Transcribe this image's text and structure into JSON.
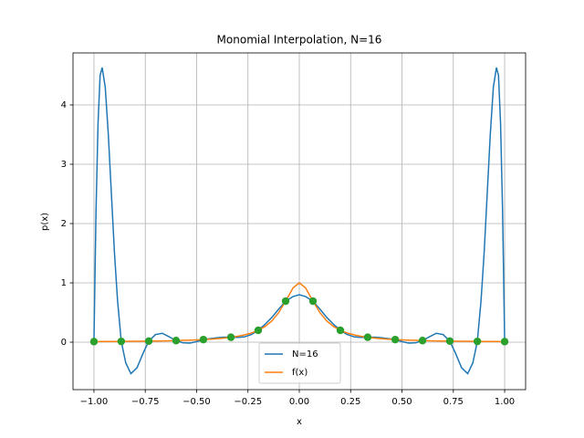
{
  "chart_data": {
    "type": "line",
    "title": "Monomial Interpolation, N=16",
    "xlabel": "x",
    "ylabel": "p(x)",
    "x": [
      -1.0,
      -0.99,
      -0.98,
      -0.97,
      -0.96,
      -0.945,
      -0.93,
      -0.915,
      -0.9,
      -0.885,
      -0.867,
      -0.845,
      -0.82,
      -0.79,
      -0.76,
      -0.733,
      -0.7,
      -0.667,
      -0.633,
      -0.6,
      -0.567,
      -0.533,
      -0.5,
      -0.467,
      -0.433,
      -0.4,
      -0.367,
      -0.333,
      -0.3,
      -0.267,
      -0.233,
      -0.2,
      -0.167,
      -0.133,
      -0.1,
      -0.0667,
      -0.03,
      0,
      0.03,
      0.0667,
      0.1,
      0.133,
      0.167,
      0.2,
      0.233,
      0.267,
      0.3,
      0.333,
      0.367,
      0.4,
      0.433,
      0.467,
      0.5,
      0.533,
      0.567,
      0.6,
      0.633,
      0.667,
      0.7,
      0.733,
      0.76,
      0.79,
      0.82,
      0.845,
      0.867,
      0.885,
      0.9,
      0.915,
      0.93,
      0.945,
      0.96,
      0.97,
      0.98,
      0.99,
      1.0
    ],
    "series": [
      {
        "name": "N=16",
        "color": "#1f77b4",
        "values": [
          0.01,
          2.2,
          3.7,
          4.5,
          4.63,
          4.3,
          3.5,
          2.5,
          1.5,
          0.7,
          0.013,
          -0.35,
          -0.53,
          -0.43,
          -0.18,
          0.018,
          0.13,
          0.15,
          0.09,
          0.024,
          -0.01,
          -0.015,
          0.01,
          0.044,
          0.06,
          0.075,
          0.085,
          0.083,
          0.08,
          0.09,
          0.13,
          0.2,
          0.3,
          0.42,
          0.56,
          0.692,
          0.77,
          0.8,
          0.77,
          0.692,
          0.56,
          0.42,
          0.3,
          0.2,
          0.13,
          0.09,
          0.08,
          0.083,
          0.085,
          0.075,
          0.06,
          0.044,
          0.01,
          -0.015,
          -0.01,
          0.024,
          0.09,
          0.15,
          0.13,
          0.018,
          -0.18,
          -0.43,
          -0.53,
          -0.35,
          0.013,
          0.7,
          1.5,
          2.5,
          3.5,
          4.3,
          4.63,
          4.5,
          3.7,
          2.2,
          0.01
        ]
      },
      {
        "name": "f(x)",
        "color": "#ff7f0e",
        "values": [
          0.01,
          0.01,
          0.01,
          0.011,
          0.011,
          0.011,
          0.011,
          0.012,
          0.012,
          0.013,
          0.013,
          0.014,
          0.015,
          0.016,
          0.017,
          0.018,
          0.02,
          0.022,
          0.024,
          0.027,
          0.03,
          0.034,
          0.038,
          0.044,
          0.051,
          0.059,
          0.069,
          0.083,
          0.1,
          0.123,
          0.155,
          0.2,
          0.264,
          0.36,
          0.5,
          0.692,
          0.917,
          1.0,
          0.917,
          0.692,
          0.5,
          0.36,
          0.264,
          0.2,
          0.155,
          0.123,
          0.1,
          0.083,
          0.069,
          0.059,
          0.051,
          0.044,
          0.038,
          0.034,
          0.03,
          0.027,
          0.024,
          0.022,
          0.02,
          0.018,
          0.017,
          0.016,
          0.015,
          0.014,
          0.013,
          0.013,
          0.012,
          0.012,
          0.011,
          0.011,
          0.011,
          0.011,
          0.01,
          0.01,
          0.01
        ]
      }
    ],
    "points": {
      "color": "#2ca02c",
      "x": [
        -1.0,
        -0.867,
        -0.733,
        -0.6,
        -0.467,
        -0.333,
        -0.2,
        -0.0667,
        0.0667,
        0.2,
        0.333,
        0.467,
        0.6,
        0.733,
        0.867,
        1.0
      ],
      "values": [
        0.01,
        0.013,
        0.018,
        0.027,
        0.044,
        0.083,
        0.2,
        0.692,
        0.692,
        0.2,
        0.083,
        0.044,
        0.027,
        0.018,
        0.013,
        0.01
      ]
    },
    "xlim": [
      -1.102,
      1.102
    ],
    "ylim": [
      -0.8,
      4.877
    ],
    "xticks": [
      {
        "value": -1,
        "label": "−1.00"
      },
      {
        "value": -0.75,
        "label": "−0.75"
      },
      {
        "value": -0.5,
        "label": "−0.50"
      },
      {
        "value": -0.25,
        "label": "−0.25"
      },
      {
        "value": 0,
        "label": "0.00"
      },
      {
        "value": 0.25,
        "label": "0.25"
      },
      {
        "value": 0.5,
        "label": "0.50"
      },
      {
        "value": 0.75,
        "label": "0.75"
      },
      {
        "value": 1,
        "label": "1.00"
      }
    ],
    "yticks": [
      0,
      1,
      2,
      3,
      4
    ],
    "grid": true,
    "legend": "lower center"
  }
}
